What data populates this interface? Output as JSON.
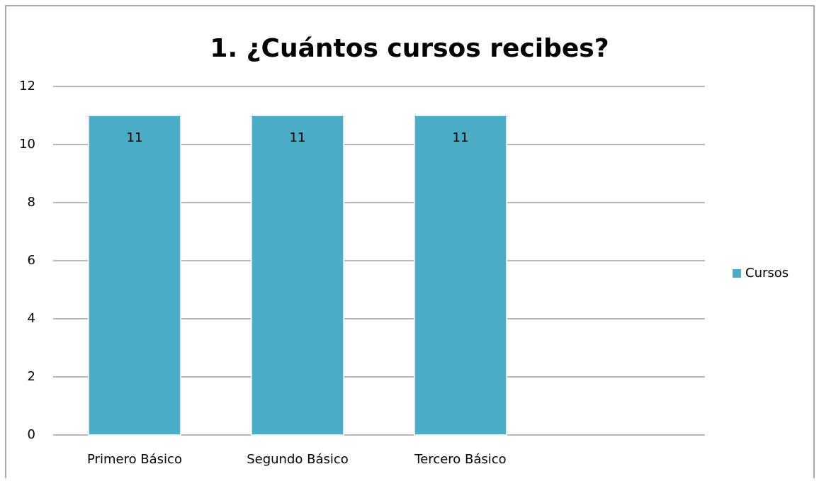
{
  "chart_data": {
    "type": "bar",
    "title": "1. ¿Cuántos cursos recibes?",
    "categories": [
      "Primero Básico",
      "Segundo Básico",
      "Tercero Básico",
      null
    ],
    "series": [
      {
        "name": "Cursos",
        "color": "#4bacc6",
        "values": [
          11,
          11,
          11,
          null
        ]
      }
    ],
    "ylim": [
      0,
      12
    ],
    "yticks": [
      0,
      2,
      4,
      6,
      8,
      10,
      12
    ],
    "grid": true,
    "legend": "right"
  }
}
